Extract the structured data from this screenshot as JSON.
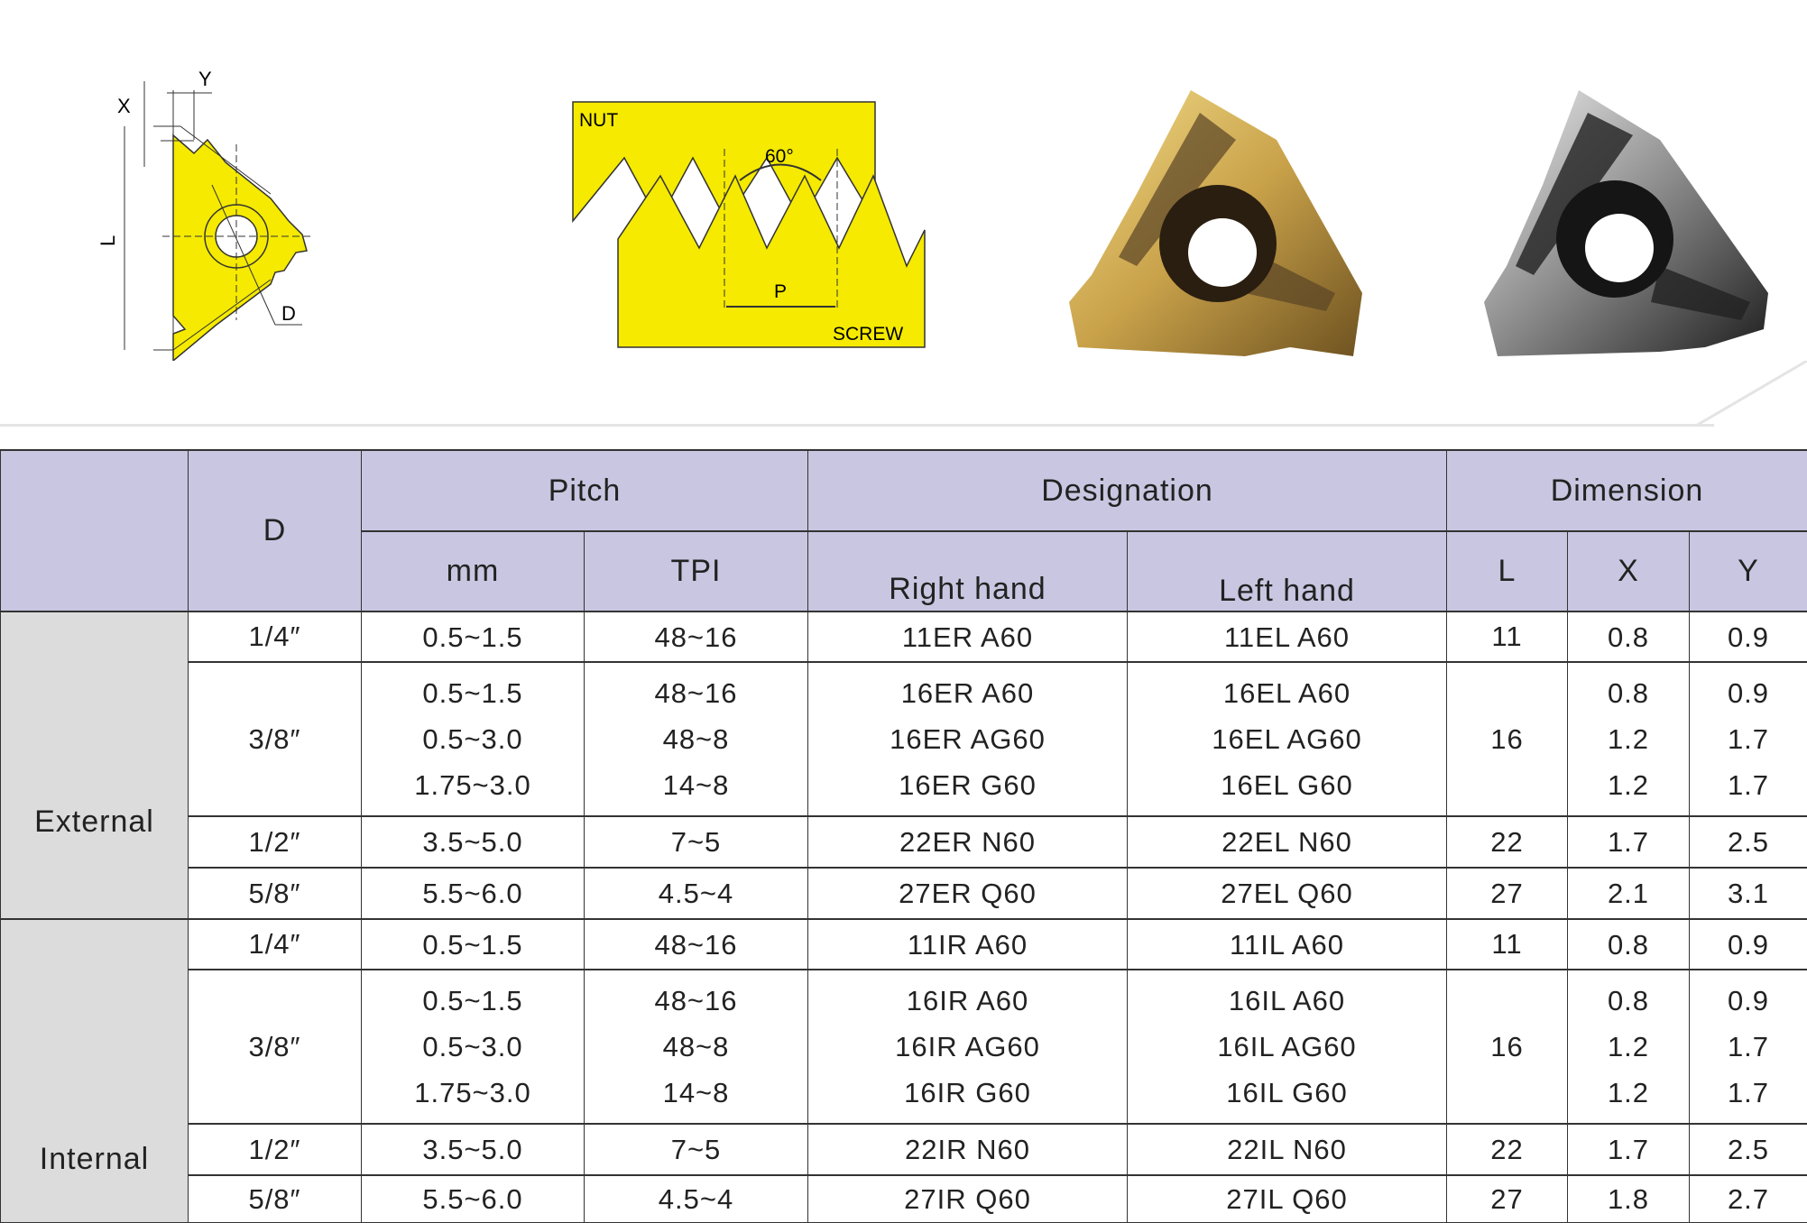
{
  "diagrams": {
    "insert_labels": {
      "x": "X",
      "y": "Y",
      "l": "L",
      "d": "D"
    },
    "thread_labels": {
      "nut": "NUT",
      "screw": "SCREW",
      "angle": "60°",
      "pitch": "P"
    }
  },
  "colors": {
    "diagram_yellow": "#f5ea00",
    "header_bg": "#c8c6e0",
    "group_bg": "#dcdcdc",
    "gold_insert": "#c9a24a",
    "silver_insert": "#b8b8b8"
  },
  "table": {
    "headers": {
      "blank": "",
      "d": "D",
      "pitch": "Pitch",
      "designation": "Designation",
      "dimension": "Dimension",
      "mm": "mm",
      "tpi": "TPI",
      "right_hand": "Right hand",
      "left_hand": "Left hand",
      "l": "L",
      "x": "X",
      "y": "Y"
    },
    "groups": [
      {
        "label": "External",
        "rows": [
          {
            "d": "1/4″",
            "mm": [
              "0.5~1.5"
            ],
            "tpi": [
              "48~16"
            ],
            "right": [
              "11ER A60"
            ],
            "left": [
              "11EL A60"
            ],
            "l": "11",
            "x": [
              "0.8"
            ],
            "y": [
              "0.9"
            ]
          },
          {
            "d": "3/8″",
            "mm": [
              "0.5~1.5",
              "0.5~3.0",
              "1.75~3.0"
            ],
            "tpi": [
              "48~16",
              "48~8",
              "14~8"
            ],
            "right": [
              "16ER A60",
              "16ER AG60",
              "16ER G60"
            ],
            "left": [
              "16EL A60",
              "16EL AG60",
              "16EL G60"
            ],
            "l": "16",
            "x": [
              "0.8",
              "1.2",
              "1.2"
            ],
            "y": [
              "0.9",
              "1.7",
              "1.7"
            ]
          },
          {
            "d": "1/2″",
            "mm": [
              "3.5~5.0"
            ],
            "tpi": [
              "7~5"
            ],
            "right": [
              "22ER N60"
            ],
            "left": [
              "22EL N60"
            ],
            "l": "22",
            "x": [
              "1.7"
            ],
            "y": [
              "2.5"
            ]
          },
          {
            "d": "5/8″",
            "mm": [
              "5.5~6.0"
            ],
            "tpi": [
              "4.5~4"
            ],
            "right": [
              "27ER Q60"
            ],
            "left": [
              "27EL Q60"
            ],
            "l": "27",
            "x": [
              "2.1"
            ],
            "y": [
              "3.1"
            ]
          }
        ]
      },
      {
        "label": "Internal",
        "rows": [
          {
            "d": "1/4″",
            "mm": [
              "0.5~1.5"
            ],
            "tpi": [
              "48~16"
            ],
            "right": [
              "11IR A60"
            ],
            "left": [
              "11IL A60"
            ],
            "l": "11",
            "x": [
              "0.8"
            ],
            "y": [
              "0.9"
            ]
          },
          {
            "d": "3/8″",
            "mm": [
              "0.5~1.5",
              "0.5~3.0",
              "1.75~3.0"
            ],
            "tpi": [
              "48~16",
              "48~8",
              "14~8"
            ],
            "right": [
              "16IR A60",
              "16IR AG60",
              "16IR G60"
            ],
            "left": [
              "16IL A60",
              "16IL AG60",
              "16IL G60"
            ],
            "l": "16",
            "x": [
              "0.8",
              "1.2",
              "1.2"
            ],
            "y": [
              "0.9",
              "1.7",
              "1.7"
            ]
          },
          {
            "d": "1/2″",
            "mm": [
              "3.5~5.0"
            ],
            "tpi": [
              "7~5"
            ],
            "right": [
              "22IR N60"
            ],
            "left": [
              "22IL N60"
            ],
            "l": "22",
            "x": [
              "1.7"
            ],
            "y": [
              "2.5"
            ]
          },
          {
            "d": "5/8″",
            "mm": [
              "5.5~6.0"
            ],
            "tpi": [
              "4.5~4"
            ],
            "right": [
              "27IR Q60"
            ],
            "left": [
              "27IL Q60"
            ],
            "l": "27",
            "x": [
              "1.8"
            ],
            "y": [
              "2.7"
            ]
          }
        ]
      }
    ]
  }
}
